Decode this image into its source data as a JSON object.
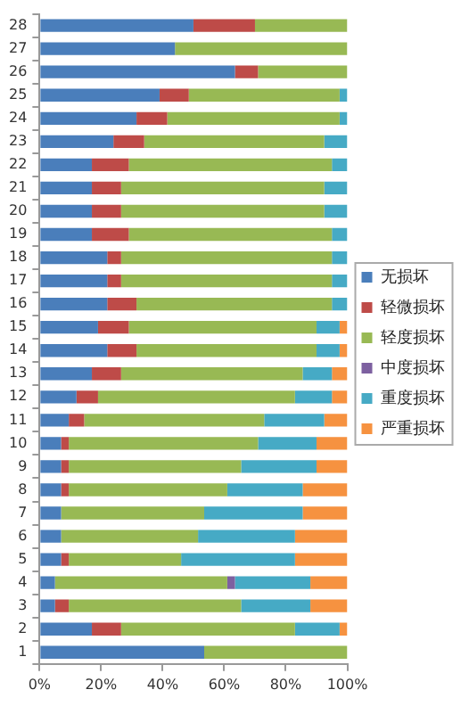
{
  "chart_data": {
    "type": "bar",
    "orientation": "horizontal",
    "stacked": true,
    "grid": false,
    "legend": "right",
    "categories": [
      "28",
      "27",
      "26",
      "25",
      "24",
      "23",
      "22",
      "21",
      "20",
      "19",
      "18",
      "17",
      "16",
      "15",
      "14",
      "13",
      "12",
      "11",
      "10",
      "9",
      "8",
      "7",
      "6",
      "5",
      "4",
      "3",
      "2",
      "1"
    ],
    "xlim": [
      0,
      100
    ],
    "xticks": [
      {
        "value": 0,
        "label": "0%"
      },
      {
        "value": 20,
        "label": "20%"
      },
      {
        "value": 40,
        "label": "40%"
      },
      {
        "value": 60,
        "label": "60%"
      },
      {
        "value": 80,
        "label": "80%"
      },
      {
        "value": 100,
        "label": "100%"
      }
    ],
    "series": [
      {
        "name": "无损坏",
        "color": "#4a7ebb",
        "values": [
          50,
          44,
          63.5,
          39,
          31.5,
          24,
          17,
          17,
          17,
          17,
          22,
          22,
          22,
          19,
          22,
          17,
          12,
          9.5,
          7,
          7,
          7,
          7,
          7,
          7,
          5,
          5,
          17,
          53.5
        ]
      },
      {
        "name": "轻微损坏",
        "color": "#be4b48",
        "values": [
          20,
          0,
          7.5,
          9.5,
          10,
          10,
          12,
          9.5,
          9.5,
          12,
          4.5,
          4.5,
          9.5,
          10,
          9.5,
          9.5,
          7,
          5,
          2.5,
          2.5,
          2.5,
          0,
          0,
          2.5,
          0,
          4.5,
          9.5,
          0
        ]
      },
      {
        "name": "轻度损坏",
        "color": "#98b954",
        "values": [
          30,
          56,
          29,
          49,
          56,
          58.5,
          66,
          66,
          66,
          66,
          68.5,
          68.5,
          63.5,
          61,
          58.5,
          59,
          64,
          58.5,
          61.5,
          56,
          51.5,
          46.5,
          44.5,
          36.5,
          56,
          56,
          56.5,
          46.5
        ]
      },
      {
        "name": "中度损坏",
        "color": "#7d60a0",
        "values": [
          0,
          0,
          0,
          0,
          0,
          0,
          0,
          0,
          0,
          0,
          0,
          0,
          0,
          0,
          0,
          0,
          0,
          0,
          0,
          0,
          0,
          0,
          0,
          0,
          2.5,
          0,
          0,
          0
        ]
      },
      {
        "name": "重度损坏",
        "color": "#46aac5",
        "values": [
          0,
          0,
          0,
          2.5,
          2.5,
          7.5,
          5,
          7.5,
          7.5,
          5,
          5,
          5,
          5,
          7.5,
          7.5,
          9.5,
          12,
          19.5,
          19,
          24.5,
          24.5,
          32,
          31.5,
          37,
          24.5,
          22.5,
          14.5,
          0
        ]
      },
      {
        "name": "严重损坏",
        "color": "#f69240",
        "values": [
          0,
          0,
          0,
          0,
          0,
          0,
          0,
          0,
          0,
          0,
          0,
          0,
          0,
          2.5,
          2.5,
          5,
          5,
          7.5,
          10,
          10,
          14.5,
          14.5,
          17,
          17,
          12,
          12,
          2.5,
          0
        ]
      }
    ]
  }
}
